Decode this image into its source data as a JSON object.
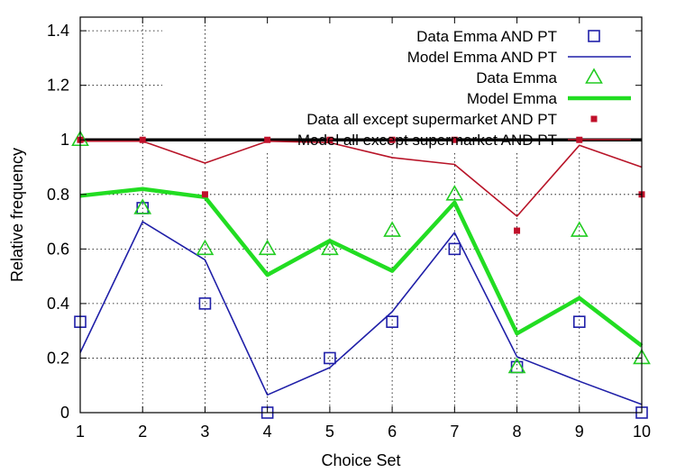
{
  "chart_data": {
    "type": "line",
    "xlabel": "Choice Set",
    "ylabel": "Relative frequency",
    "x": [
      1,
      2,
      3,
      4,
      5,
      6,
      7,
      8,
      9,
      10
    ],
    "xlim": [
      1,
      10
    ],
    "ylim": [
      0,
      1.45
    ],
    "xticks": [
      "1",
      "2",
      "3",
      "4",
      "5",
      "6",
      "7",
      "8",
      "9",
      "10"
    ],
    "yticks": [
      "0",
      "0.2",
      "0.4",
      "0.6",
      "0.8",
      "1",
      "1.2",
      "1.4"
    ],
    "ytick_values": [
      0,
      0.2,
      0.4,
      0.6,
      0.8,
      1.0,
      1.2,
      1.4
    ],
    "grid": "dotted",
    "reference_line": {
      "y": 1.0,
      "color": "#000000"
    },
    "legend_position": "top-right",
    "series": [
      {
        "name": "Data  Emma AND PT",
        "kind": "points",
        "marker": "square",
        "color": "#1f1fa8",
        "values": [
          0.333,
          0.75,
          0.4,
          0.0,
          0.2,
          0.333,
          0.6,
          0.167,
          0.333,
          0.0
        ]
      },
      {
        "name": "Model Emma AND PT",
        "kind": "line",
        "color": "#1f1fa8",
        "values": [
          0.22,
          0.7,
          0.56,
          0.065,
          0.165,
          0.37,
          0.66,
          0.205,
          0.115,
          0.03
        ]
      },
      {
        "name": "Data  Emma",
        "kind": "points",
        "marker": "triangle",
        "color": "#22cc22",
        "values": [
          1.0,
          0.75,
          0.6,
          0.6,
          0.6,
          0.667,
          0.8,
          0.167,
          0.667,
          0.2
        ]
      },
      {
        "name": "Model Emma",
        "kind": "line",
        "color": "#22dd22",
        "values": [
          0.795,
          0.82,
          0.79,
          0.505,
          0.63,
          0.52,
          0.77,
          0.29,
          0.42,
          0.245
        ]
      },
      {
        "name": "Data  all except supermarket AND PT",
        "kind": "points",
        "marker": "filled-square",
        "color": "#c0102a",
        "values": [
          1.0,
          1.0,
          0.8,
          1.0,
          1.0,
          1.0,
          1.0,
          0.667,
          1.0,
          0.8
        ]
      },
      {
        "name": "Model all except supermarket AND PT",
        "kind": "line",
        "color": "#b81428",
        "values": [
          0.995,
          0.995,
          0.915,
          0.995,
          0.99,
          0.935,
          0.91,
          0.72,
          0.98,
          0.9
        ]
      }
    ]
  }
}
